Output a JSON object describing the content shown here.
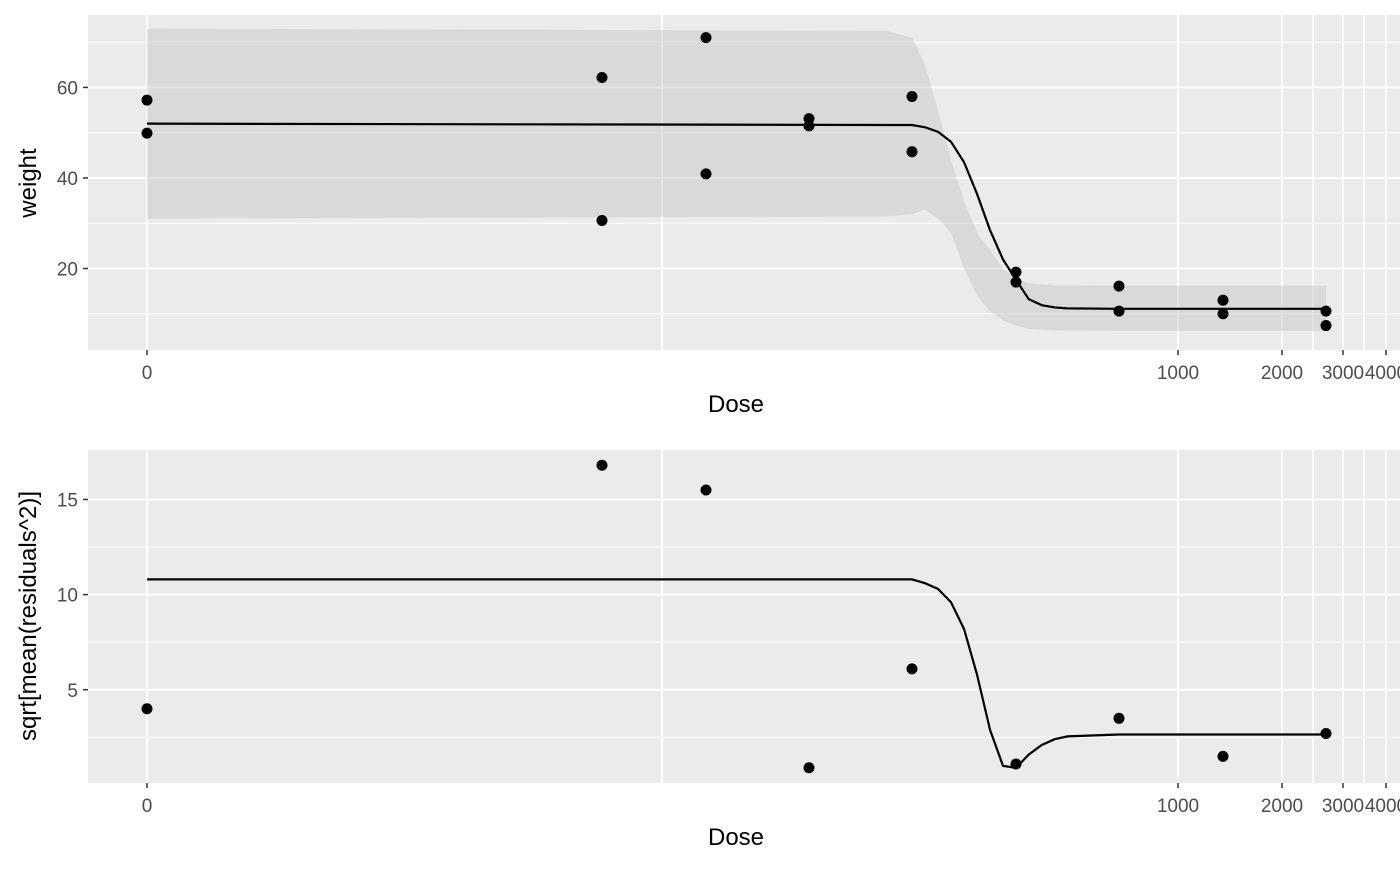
{
  "chart_data": [
    {
      "type": "scatter",
      "xlabel": "Dose",
      "ylabel": "weight",
      "x_scale": "pseudo-log",
      "x_tick_labels": [
        "0",
        "1000",
        "2000",
        "3000",
        "4000"
      ],
      "y_tick_labels": [
        "20",
        "40",
        "60"
      ],
      "ylim": [
        2,
        76
      ],
      "grid": true,
      "points": [
        {
          "x": 0,
          "y": 57.2
        },
        {
          "x": 0,
          "y": 49.9
        },
        {
          "x": 8,
          "y": 62.2
        },
        {
          "x": 8,
          "y": 30.6
        },
        {
          "x": 16,
          "y": 71.0
        },
        {
          "x": 16,
          "y": 40.9
        },
        {
          "x": 32,
          "y": 53.1
        },
        {
          "x": 32,
          "y": 51.5
        },
        {
          "x": 64,
          "y": 58.0
        },
        {
          "x": 64,
          "y": 45.8
        },
        {
          "x": 128,
          "y": 19.2
        },
        {
          "x": 128,
          "y": 17.0
        },
        {
          "x": 256,
          "y": 16.1
        },
        {
          "x": 256,
          "y": 10.6
        },
        {
          "x": 512,
          "y": 13.0
        },
        {
          "x": 512,
          "y": 10.0
        },
        {
          "x": 2048,
          "y": 10.6
        },
        {
          "x": 2048,
          "y": 7.4
        }
      ],
      "fit_line": [
        [
          0,
          52.0
        ],
        [
          64,
          51.7
        ],
        [
          72,
          51.2
        ],
        [
          80,
          50.2
        ],
        [
          88,
          48.0
        ],
        [
          96,
          43.5
        ],
        [
          104,
          36.5
        ],
        [
          112,
          28.5
        ],
        [
          120,
          22.0
        ],
        [
          128,
          17.5
        ],
        [
          144,
          13.2
        ],
        [
          160,
          11.9
        ],
        [
          176,
          11.4
        ],
        [
          192,
          11.2
        ],
        [
          256,
          11.1
        ],
        [
          2048,
          11.1
        ]
      ],
      "ribbon": [
        [
          0,
          73.0,
          31.0
        ],
        [
          56,
          72.5,
          31.5
        ],
        [
          64,
          71.0,
          32.0
        ],
        [
          72,
          65.0,
          33.0
        ],
        [
          80,
          55.0,
          31.0
        ],
        [
          88,
          44.0,
          28.0
        ],
        [
          96,
          35.0,
          20.0
        ],
        [
          104,
          28.0,
          14.0
        ],
        [
          112,
          24.0,
          10.5
        ],
        [
          120,
          20.0,
          8.5
        ],
        [
          128,
          17.8,
          7.4
        ],
        [
          144,
          16.8,
          6.6
        ],
        [
          176,
          16.3,
          6.3
        ],
        [
          256,
          16.2,
          6.2
        ],
        [
          2048,
          16.2,
          6.2
        ]
      ]
    },
    {
      "type": "scatter",
      "xlabel": "Dose",
      "ylabel": "sqrt[mean(residuals^2)]",
      "x_scale": "pseudo-log",
      "x_tick_labels": [
        "0",
        "1000",
        "2000",
        "3000",
        "4000"
      ],
      "y_tick_labels": [
        "5",
        "10",
        "15"
      ],
      "ylim": [
        0.1,
        17.6
      ],
      "grid": true,
      "points": [
        {
          "x": 0,
          "y": 4.0
        },
        {
          "x": 8,
          "y": 16.8
        },
        {
          "x": 16,
          "y": 15.5
        },
        {
          "x": 32,
          "y": 0.9
        },
        {
          "x": 64,
          "y": 6.1
        },
        {
          "x": 128,
          "y": 1.1
        },
        {
          "x": 256,
          "y": 3.5
        },
        {
          "x": 512,
          "y": 1.5
        },
        {
          "x": 2048,
          "y": 2.7
        }
      ],
      "fit_line": [
        [
          0,
          10.8
        ],
        [
          64,
          10.8
        ],
        [
          72,
          10.6
        ],
        [
          80,
          10.3
        ],
        [
          88,
          9.6
        ],
        [
          96,
          8.2
        ],
        [
          104,
          5.8
        ],
        [
          112,
          2.9
        ],
        [
          120,
          1.0
        ],
        [
          128,
          0.9
        ],
        [
          144,
          1.6
        ],
        [
          160,
          2.1
        ],
        [
          176,
          2.4
        ],
        [
          192,
          2.55
        ],
        [
          256,
          2.65
        ],
        [
          2048,
          2.65
        ]
      ]
    }
  ]
}
